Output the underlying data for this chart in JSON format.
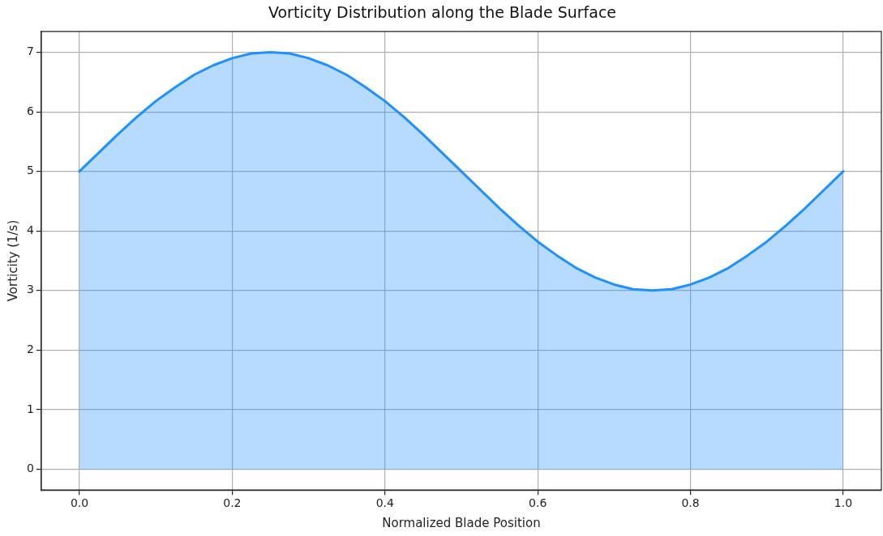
{
  "chart_data": {
    "type": "area",
    "title": "Vorticity Distribution along the Blade Surface",
    "xlabel": "Normalized Blade Position",
    "ylabel": "Vorticity (1/s)",
    "x": [
      0,
      0.025,
      0.05,
      0.075,
      0.1,
      0.125,
      0.15,
      0.175,
      0.2,
      0.225,
      0.25,
      0.275,
      0.3,
      0.325,
      0.35,
      0.375,
      0.4,
      0.425,
      0.45,
      0.475,
      0.5,
      0.525,
      0.55,
      0.575,
      0.6,
      0.625,
      0.65,
      0.675,
      0.7,
      0.725,
      0.75,
      0.775,
      0.8,
      0.825,
      0.85,
      0.875,
      0.9,
      0.925,
      0.95,
      0.975,
      1
    ],
    "series": [
      {
        "color": "#1e90ff",
        "values": [
          5,
          5.31,
          5.62,
          5.91,
          6.18,
          6.41,
          6.62,
          6.78,
          6.9,
          6.98,
          7,
          6.98,
          6.9,
          6.78,
          6.62,
          6.41,
          6.18,
          5.91,
          5.62,
          5.31,
          5,
          4.69,
          4.38,
          4.09,
          3.82,
          3.59,
          3.38,
          3.22,
          3.1,
          3.02,
          3,
          3.02,
          3.1,
          3.22,
          3.38,
          3.59,
          3.82,
          4.09,
          4.38,
          4.69,
          5
        ]
      }
    ],
    "xlim": [
      -0.05,
      1.05
    ],
    "ylim": [
      -0.35,
      7.35
    ],
    "xticks": [
      {
        "value": 0,
        "label": "0.0"
      },
      0.2,
      0.4,
      0.6,
      0.8,
      {
        "value": 1,
        "label": "1.0"
      }
    ],
    "yticks": [
      0,
      1,
      2,
      3,
      4,
      5,
      6,
      7
    ],
    "grid": true,
    "legend": false,
    "marker": "none",
    "line_style": "solid"
  }
}
